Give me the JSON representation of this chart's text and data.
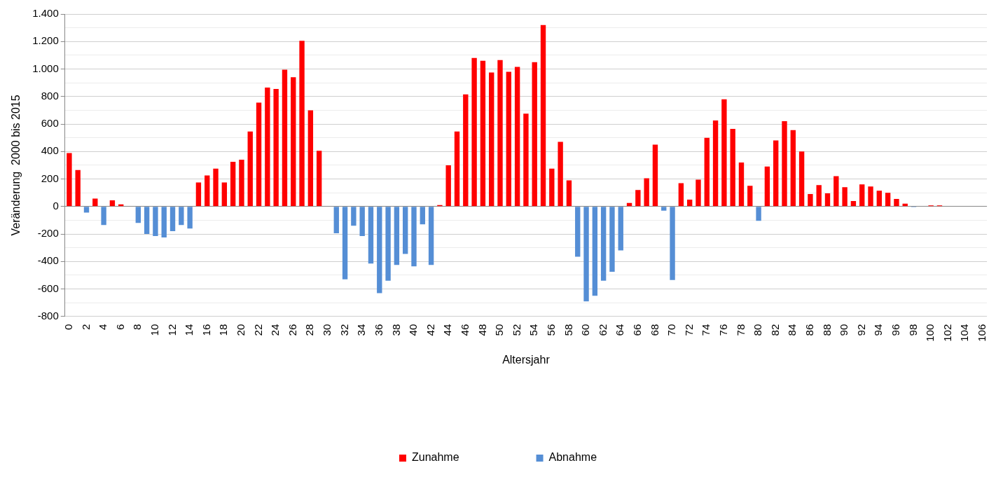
{
  "chart_data": {
    "type": "bar",
    "xlabel": "Altersjahr",
    "ylabel": "Veränderung  2000 bis 2015",
    "categories": [
      "0",
      null,
      "2",
      null,
      "4",
      null,
      "6",
      null,
      "8",
      null,
      "10",
      null,
      "12",
      null,
      "14",
      null,
      "16",
      null,
      "18",
      null,
      "20",
      null,
      "22",
      null,
      "24",
      null,
      "26",
      null,
      "28",
      null,
      "30",
      null,
      "32",
      null,
      "34",
      null,
      "36",
      null,
      "38",
      null,
      "40",
      null,
      "42",
      null,
      "44",
      null,
      "46",
      null,
      "48",
      null,
      "50",
      null,
      "52",
      null,
      "54",
      null,
      "56",
      null,
      "58",
      null,
      "60",
      null,
      "62",
      null,
      "64",
      null,
      "66",
      null,
      "68",
      null,
      "70",
      null,
      "72",
      null,
      "74",
      null,
      "76",
      null,
      "78",
      null,
      "80",
      null,
      "82",
      null,
      "84",
      null,
      "86",
      null,
      "88",
      null,
      "90",
      null,
      "92",
      null,
      "94",
      null,
      "96",
      null,
      "98",
      null,
      "100",
      null,
      "102",
      null,
      "104",
      null,
      "106"
    ],
    "series": [
      {
        "name": "Zunahme",
        "color": "#ff0000",
        "values": [
          388,
          265,
          null,
          57,
          null,
          45,
          15,
          0,
          null,
          null,
          null,
          null,
          null,
          null,
          null,
          175,
          225,
          275,
          175,
          325,
          340,
          545,
          755,
          865,
          855,
          995,
          940,
          1205,
          700,
          405,
          0,
          null,
          null,
          null,
          null,
          null,
          null,
          null,
          null,
          null,
          null,
          null,
          null,
          10,
          300,
          545,
          815,
          1080,
          1060,
          975,
          1065,
          980,
          1015,
          675,
          1050,
          1320,
          275,
          470,
          190,
          null,
          null,
          null,
          null,
          null,
          null,
          25,
          120,
          205,
          450,
          null,
          null,
          170,
          50,
          195,
          500,
          625,
          780,
          565,
          320,
          150,
          null,
          290,
          480,
          620,
          555,
          400,
          90,
          155,
          95,
          220,
          140,
          40,
          160,
          145,
          115,
          100,
          55,
          20,
          null,
          0,
          8,
          8,
          0,
          0,
          0,
          0,
          0
        ]
      },
      {
        "name": "Abnahme",
        "color": "#558ed5",
        "values": [
          null,
          null,
          -45,
          null,
          -135,
          null,
          null,
          null,
          -120,
          -200,
          -215,
          -225,
          -180,
          -135,
          -160,
          null,
          null,
          null,
          null,
          null,
          null,
          null,
          null,
          null,
          null,
          null,
          null,
          null,
          null,
          null,
          null,
          -195,
          -530,
          -140,
          -215,
          -415,
          -630,
          -540,
          -425,
          -345,
          -435,
          -130,
          -425,
          null,
          null,
          null,
          null,
          null,
          null,
          null,
          null,
          null,
          null,
          null,
          null,
          null,
          null,
          null,
          null,
          -365,
          -690,
          -650,
          -540,
          -475,
          -320,
          null,
          null,
          null,
          null,
          -30,
          -535,
          null,
          null,
          null,
          null,
          null,
          null,
          null,
          null,
          null,
          -105,
          null,
          null,
          null,
          null,
          null,
          null,
          null,
          null,
          null,
          null,
          null,
          null,
          null,
          null,
          null,
          null,
          null,
          -5,
          null,
          null,
          null,
          null,
          null,
          null,
          null,
          null
        ]
      }
    ],
    "stacked": true,
    "ylim": [
      -800,
      1400
    ],
    "yticks": [
      {
        "value": -800,
        "label": "-800"
      },
      {
        "value": -700,
        "label": null
      },
      {
        "value": -600,
        "label": "-600"
      },
      {
        "value": -500,
        "label": null
      },
      {
        "value": -400,
        "label": "-400"
      },
      {
        "value": -300,
        "label": null
      },
      {
        "value": -200,
        "label": "-200"
      },
      {
        "value": -100,
        "label": null
      },
      {
        "value": 0,
        "label": "0"
      },
      {
        "value": 100,
        "label": null
      },
      {
        "value": 200,
        "label": "200"
      },
      {
        "value": 300,
        "label": null
      },
      {
        "value": 400,
        "label": "400"
      },
      {
        "value": 500,
        "label": null
      },
      {
        "value": 600,
        "label": "600"
      },
      {
        "value": 700,
        "label": null
      },
      {
        "value": 800,
        "label": "800"
      },
      {
        "value": 900,
        "label": null
      },
      {
        "value": 1000,
        "label": "1.000"
      },
      {
        "value": 1100,
        "label": null
      },
      {
        "value": 1200,
        "label": "1.200"
      },
      {
        "value": 1300,
        "label": null
      },
      {
        "value": 1400,
        "label": "1.400"
      }
    ],
    "grid": "y",
    "legend": "bottom"
  }
}
